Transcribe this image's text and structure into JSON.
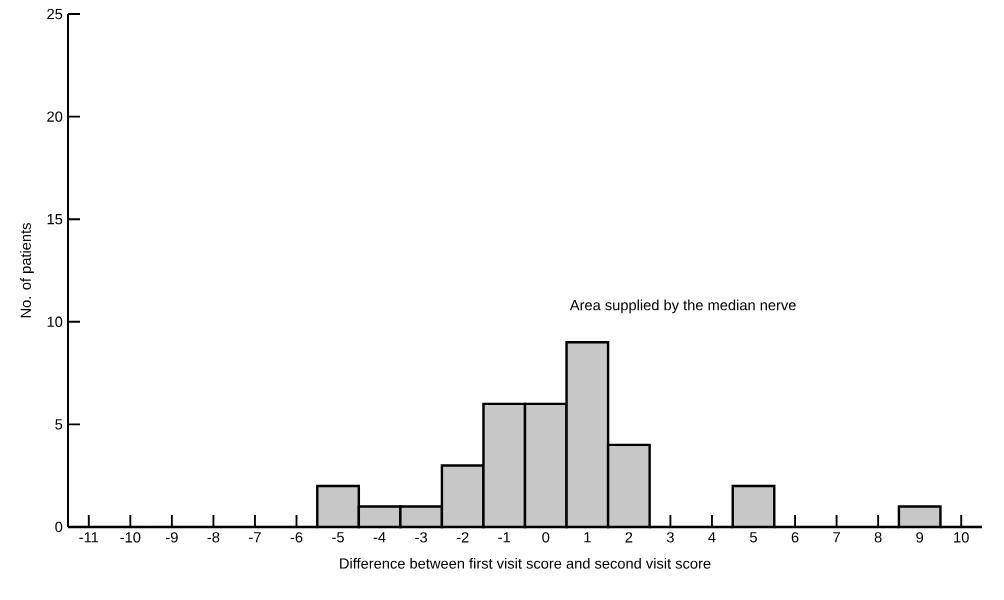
{
  "chart_data": {
    "type": "histogram",
    "xlabel": "Difference between first visit score and second visit score",
    "ylabel": "No. of patients",
    "annotations": [
      "Area supplied by the median nerve"
    ],
    "bins": [
      -11.5,
      -10.5,
      -9.5,
      -8.5,
      -7.5,
      -6.5,
      -5.5,
      -4.5,
      -3.5,
      -2.5,
      -1.5,
      -0.5,
      0.5,
      1.5,
      2.5,
      3.5,
      4.5,
      5.5,
      6.5,
      7.5,
      8.5,
      9.5,
      10.5
    ],
    "values": [
      0,
      0,
      0,
      0,
      0,
      0,
      2,
      1,
      1,
      3,
      6,
      6,
      9,
      4,
      0,
      0,
      2,
      0,
      0,
      0,
      1,
      0
    ],
    "color": "#000000",
    "xlim": [
      -11.5,
      10.5
    ],
    "ylim": [
      0,
      25
    ],
    "xticks": [
      -11,
      -10,
      -9,
      -8,
      -7,
      -6,
      -5,
      -4,
      -3,
      -2,
      -1,
      0,
      1,
      2,
      3,
      4,
      5,
      6,
      7,
      8,
      9,
      10
    ],
    "yticks": [
      0,
      5,
      10,
      15,
      20,
      25
    ]
  }
}
